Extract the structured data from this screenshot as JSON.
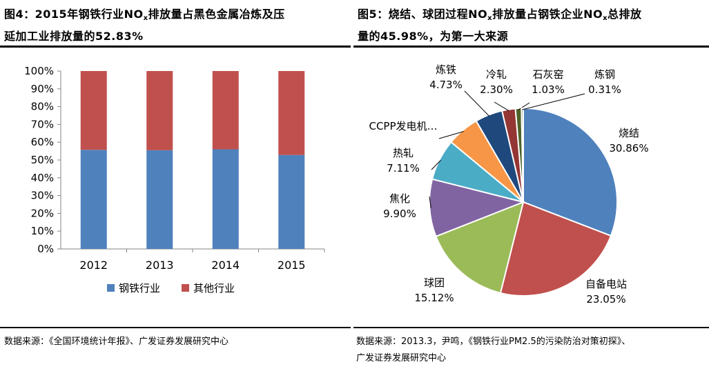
{
  "left": {
    "title_prefix": "图4：2015年钢铁行业NO",
    "title_sub": "x",
    "title_suffix": "排放量占黑色金属冶炼及压",
    "title_line2": "延加工业排放量的52.83%",
    "source": "数据来源：《全国环境统计年报》、广发证券发展研究中心"
  },
  "right": {
    "title_prefix": "图5：烧结、球团过程NO",
    "title_sub1": "x",
    "title_mid": "排放量占钢铁企业NO",
    "title_sub2": "x",
    "title_suffix": "总排放",
    "title_line2": "量的45.98%，为第一大来源",
    "source_line1": "数据来源：2013.3，尹鸣，《钢铁行业PM2.5的污染防治对策初探》、",
    "source_line2": "广发证券发展研究中心"
  },
  "colors": {
    "blue": "#4F81BD",
    "red": "#C0504D",
    "green": "#9BBB59",
    "purple": "#8064A2",
    "teal": "#4BACC6",
    "orange": "#F79646",
    "navy": "#1F497D",
    "darkred": "#943634",
    "olive": "#4F6228"
  },
  "chart_data": [
    {
      "type": "bar",
      "stacked": true,
      "categories": [
        "2012",
        "2013",
        "2014",
        "2015"
      ],
      "series": [
        {
          "name": "钢铁行业",
          "values": [
            55.7,
            55.5,
            56.0,
            52.83
          ],
          "color": "#4F81BD"
        },
        {
          "name": "其他行业",
          "values": [
            44.3,
            44.5,
            44.0,
            47.17
          ],
          "color": "#C0504D"
        }
      ],
      "ylim": [
        0,
        100
      ],
      "yticks": [
        "0%",
        "10%",
        "20%",
        "30%",
        "40%",
        "50%",
        "60%",
        "70%",
        "80%",
        "90%",
        "100%"
      ],
      "legend": "bottom",
      "grid": false
    },
    {
      "type": "pie",
      "slices": [
        {
          "label": "烧结",
          "value": 30.86,
          "text": "30.86%",
          "color": "#4F81BD"
        },
        {
          "label": "自备电站",
          "value": 23.05,
          "text": "23.05%",
          "color": "#C0504D"
        },
        {
          "label": "球团",
          "value": 15.12,
          "text": "15.12%",
          "color": "#9BBB59"
        },
        {
          "label": "焦化",
          "value": 9.9,
          "text": "9.90%",
          "color": "#8064A2"
        },
        {
          "label": "热轧",
          "value": 7.11,
          "text": "7.11%",
          "color": "#4BACC6"
        },
        {
          "label": "CCPP发电机…",
          "value": 5.59,
          "text": "",
          "color": "#F79646"
        },
        {
          "label": "炼铁",
          "value": 4.73,
          "text": "4.73%",
          "color": "#1F497D"
        },
        {
          "label": "冷轧",
          "value": 2.3,
          "text": "2.30%",
          "color": "#943634"
        },
        {
          "label": "石灰窑",
          "value": 1.03,
          "text": "1.03%",
          "color": "#4F6228"
        },
        {
          "label": "炼钢",
          "value": 0.31,
          "text": "0.31%",
          "color": "#7F7F7F"
        }
      ]
    }
  ]
}
